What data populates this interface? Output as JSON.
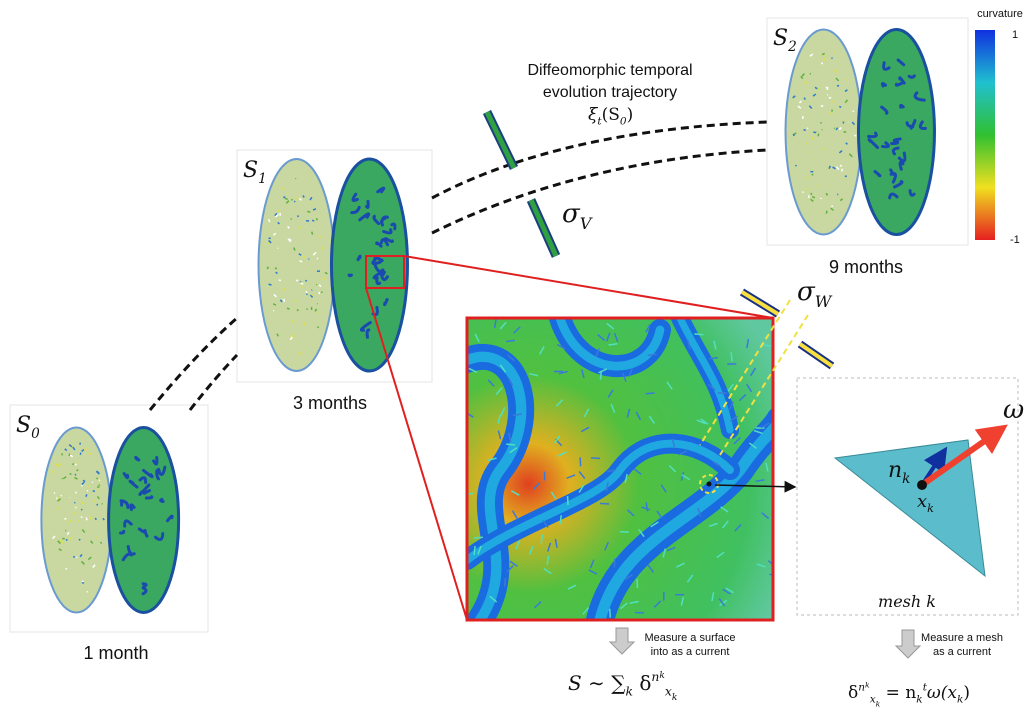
{
  "colorbar": {
    "title": "curvature",
    "max": "1",
    "min": "-1"
  },
  "stages": [
    {
      "symbol": [
        {
          "t": "S"
        },
        {
          "sub": "0"
        }
      ],
      "label": "1 month"
    },
    {
      "symbol": [
        {
          "t": "S"
        },
        {
          "sub": "1"
        }
      ],
      "label": "3 months"
    },
    {
      "symbol": [
        {
          "t": "S"
        },
        {
          "sub": "2"
        }
      ],
      "label": "9 months"
    }
  ],
  "trajectory": {
    "lines": [
      "Diffeomorphic temporal",
      "evolution trajectory"
    ],
    "formula": [
      {
        "t": "ξ"
      },
      {
        "sub": "t"
      },
      {
        "t": "(S"
      },
      {
        "sub": "0"
      },
      {
        "t": ")"
      }
    ]
  },
  "sigma_v": [
    {
      "t": "σ"
    },
    {
      "sub": "V"
    }
  ],
  "sigma_w": [
    {
      "t": "σ"
    },
    {
      "sub": "W"
    }
  ],
  "mesh": {
    "normal": [
      {
        "t": "n"
      },
      {
        "sub": "k"
      }
    ],
    "point": [
      {
        "t": "x"
      },
      {
        "sub": "k"
      }
    ],
    "vector": [
      {
        "t": "ω"
      }
    ],
    "caption": "mesh k"
  },
  "surface_step": {
    "lines": [
      "Measure a surface",
      "into as a current"
    ],
    "formula": [
      {
        "t": "S ∼ "
      },
      {
        "t": "∑"
      },
      {
        "sub": "k"
      },
      {
        "t": " δ"
      },
      {
        "sup": "n"
      },
      {
        "supsub": "k"
      },
      {
        "sub": "x"
      },
      {
        "subsub": "k"
      }
    ]
  },
  "mesh_step": {
    "lines": [
      "Measure a mesh",
      "as a current"
    ],
    "formula": [
      {
        "t": "δ"
      },
      {
        "sup": "n"
      },
      {
        "supsub": "k"
      },
      {
        "sub": "x"
      },
      {
        "subsub": "k"
      },
      {
        "t": " = n"
      },
      {
        "sub": "k"
      },
      {
        "sup": "t"
      },
      {
        "t": "ω(x"
      },
      {
        "sub": "k"
      },
      {
        "t": ")"
      }
    ]
  }
}
